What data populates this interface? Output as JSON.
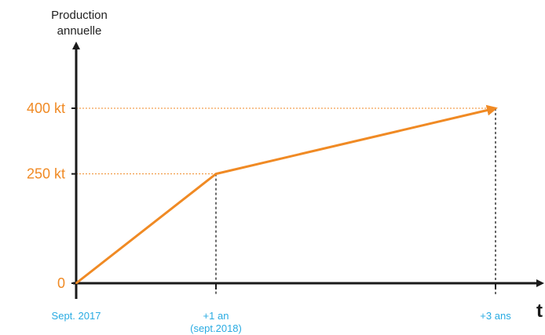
{
  "chart_data": {
    "type": "line",
    "ylabel_lines": [
      "Production",
      "annuelle"
    ],
    "xlabel": "t",
    "x": [
      0,
      1,
      3
    ],
    "y": [
      0,
      250,
      400
    ],
    "xlim": [
      0,
      3
    ],
    "ylim": [
      0,
      400
    ],
    "yticks": [
      {
        "value": 0,
        "label": "0"
      },
      {
        "value": 250,
        "label": "250 kt"
      },
      {
        "value": 400,
        "label": "400 kt"
      }
    ],
    "xticks": [
      {
        "value": 0,
        "lines": [
          "Sept. 2017"
        ]
      },
      {
        "value": 1,
        "lines": [
          "+1 an",
          "(sept.2018)"
        ]
      },
      {
        "value": 3,
        "lines": [
          "+3 ans"
        ]
      }
    ],
    "grid": false,
    "colors": {
      "series": "#f08a24",
      "ytick_labels": "#f08a24",
      "xtick_labels": "#29abe2",
      "axes": "#1a1a1a",
      "guides_horizontal": "#f08a24",
      "guides_vertical": "#1a1a1a"
    }
  }
}
